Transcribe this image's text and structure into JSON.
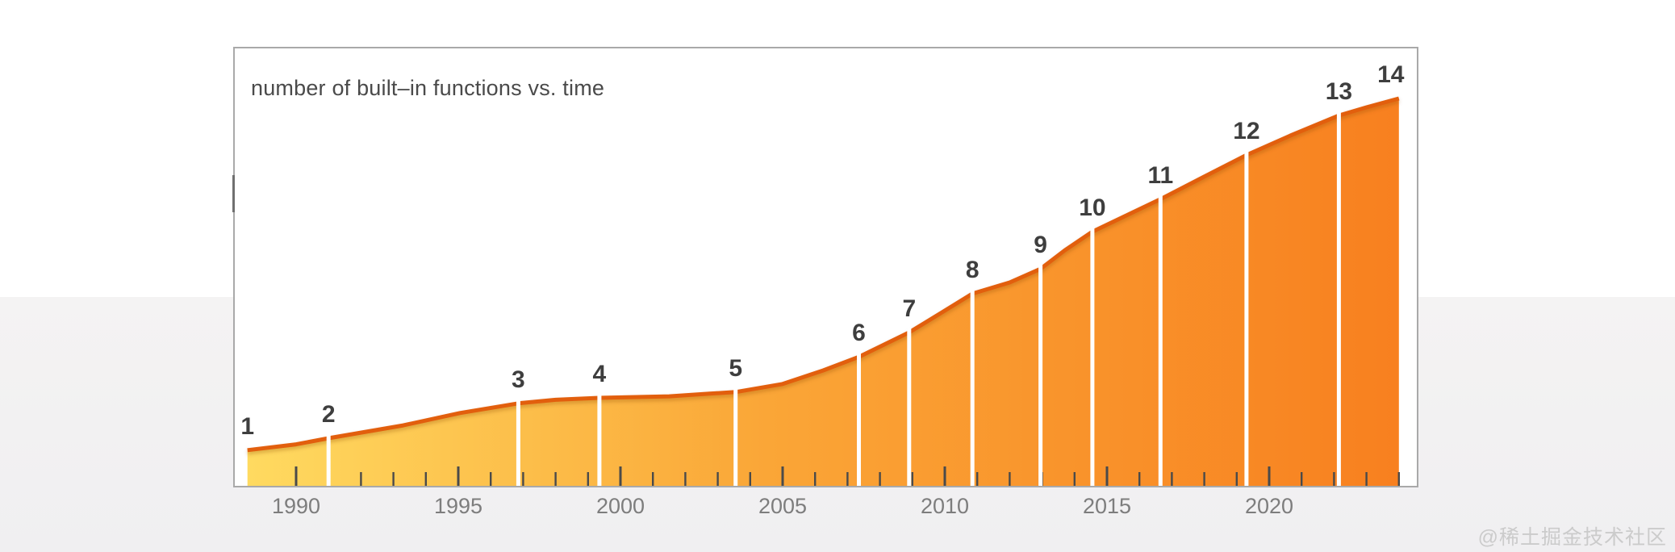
{
  "title": "number of built–in functions vs. time",
  "watermark": "@稀土掘金技术社区",
  "colors": {
    "area_left": "#FFDA60",
    "area_mid": "#FAA637",
    "area_right": "#F8801F",
    "line": "#E25E0B",
    "line_shadow": "#8a4a00",
    "marker_label": "#3E3E3E",
    "divider": "#FFFFFF",
    "tick": "#4A4A4A",
    "axis_label": "#7D7D7D",
    "title": "#4A4A4A",
    "panel_border": "#A9A9A9",
    "page_band": "#F1F0F1"
  },
  "chart_data": {
    "type": "area",
    "title": "number of built–in functions vs. time",
    "legend": "none",
    "grid": "off",
    "x_axis": {
      "range": [
        1988.05,
        2024.6
      ],
      "major_ticks": [
        1990,
        1995,
        2000,
        2005,
        2010,
        2015,
        2020
      ],
      "minor_tick_step": 1,
      "minor_tick_range": [
        1990,
        2024
      ]
    },
    "y_axis": {
      "visible": false,
      "note": "no y-axis labels shown; heights stored as fraction of maximum (version 14 = 1.0)",
      "range": [
        0,
        1
      ]
    },
    "series": [
      {
        "name": "number of built-in functions",
        "points": [
          {
            "x": 1988.5,
            "h": 0.092
          },
          {
            "x": 1990.0,
            "h": 0.107
          },
          {
            "x": 1991.0,
            "h": 0.123
          },
          {
            "x": 1993.3,
            "h": 0.156
          },
          {
            "x": 1995.05,
            "h": 0.188
          },
          {
            "x": 1996.85,
            "h": 0.213
          },
          {
            "x": 1998.0,
            "h": 0.222
          },
          {
            "x": 1999.35,
            "h": 0.227
          },
          {
            "x": 2001.5,
            "h": 0.231
          },
          {
            "x": 2002.75,
            "h": 0.238
          },
          {
            "x": 2003.55,
            "h": 0.242
          },
          {
            "x": 2005.0,
            "h": 0.263
          },
          {
            "x": 2006.25,
            "h": 0.298
          },
          {
            "x": 2007.35,
            "h": 0.333
          },
          {
            "x": 2008.9,
            "h": 0.396
          },
          {
            "x": 2009.9,
            "h": 0.447
          },
          {
            "x": 2010.85,
            "h": 0.496
          },
          {
            "x": 2012.0,
            "h": 0.525
          },
          {
            "x": 2012.95,
            "h": 0.56
          },
          {
            "x": 2013.7,
            "h": 0.608
          },
          {
            "x": 2014.55,
            "h": 0.656
          },
          {
            "x": 2015.55,
            "h": 0.696
          },
          {
            "x": 2016.65,
            "h": 0.74
          },
          {
            "x": 2017.95,
            "h": 0.796
          },
          {
            "x": 2019.3,
            "h": 0.854
          },
          {
            "x": 2020.65,
            "h": 0.904
          },
          {
            "x": 2022.15,
            "h": 0.956
          },
          {
            "x": 2023.0,
            "h": 0.977
          },
          {
            "x": 2024.0,
            "h": 1.0
          }
        ]
      }
    ],
    "markers": [
      {
        "label": "1",
        "x": 1988.5,
        "divider": false
      },
      {
        "label": "2",
        "x": 1991.0,
        "divider": true
      },
      {
        "label": "3",
        "x": 1996.85,
        "divider": true
      },
      {
        "label": "4",
        "x": 1999.35,
        "divider": true
      },
      {
        "label": "5",
        "x": 2003.55,
        "divider": true
      },
      {
        "label": "6",
        "x": 2007.35,
        "divider": true
      },
      {
        "label": "7",
        "x": 2008.9,
        "divider": true
      },
      {
        "label": "8",
        "x": 2010.85,
        "divider": true
      },
      {
        "label": "9",
        "x": 2012.95,
        "divider": true
      },
      {
        "label": "10",
        "x": 2014.55,
        "divider": true
      },
      {
        "label": "11",
        "x": 2016.65,
        "divider": true
      },
      {
        "label": "12",
        "x": 2019.3,
        "divider": true
      },
      {
        "label": "13",
        "x": 2022.15,
        "divider": true
      },
      {
        "label": "14",
        "x": 2024.0,
        "divider": false,
        "dx": -10
      }
    ]
  }
}
